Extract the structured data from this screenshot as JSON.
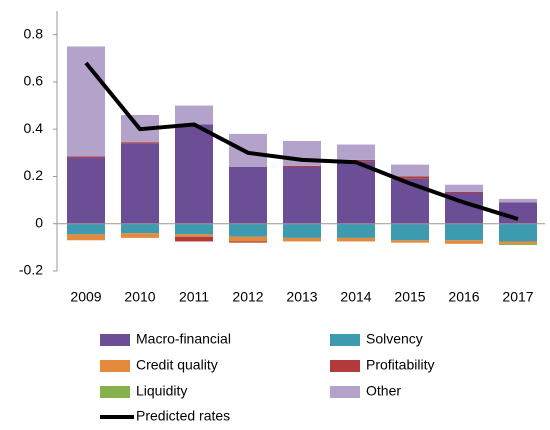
{
  "chart_data": {
    "type": "stacked-bar",
    "categories": [
      "2009",
      "2010",
      "2011",
      "2012",
      "2013",
      "2014",
      "2015",
      "2016",
      "2017"
    ],
    "series": [
      {
        "name": "Macro-financial",
        "color": "#6b4e96",
        "values": [
          0.28,
          0.34,
          0.42,
          0.24,
          0.24,
          0.265,
          0.19,
          0.13,
          0.09
        ]
      },
      {
        "name": "Solvency",
        "color": "#3d9aaf",
        "values": [
          -0.045,
          -0.04,
          -0.045,
          -0.055,
          -0.06,
          -0.06,
          -0.07,
          -0.07,
          -0.075
        ]
      },
      {
        "name": "Credit quality",
        "color": "#e38a3c",
        "values": [
          -0.025,
          -0.02,
          -0.01,
          -0.02,
          -0.015,
          -0.015,
          -0.01,
          -0.015,
          -0.01
        ]
      },
      {
        "name": "Profitability",
        "color": "#b33a3a",
        "values": [
          0.005,
          0.005,
          -0.02,
          -0.005,
          0.005,
          0.005,
          0.01,
          0.005,
          0
        ]
      },
      {
        "name": "Liquidity",
        "color": "#86b04c",
        "values": [
          0,
          0,
          0,
          0,
          0,
          0,
          0,
          0,
          -0.005
        ]
      },
      {
        "name": "Other",
        "color": "#b3a2c9",
        "values": [
          0.465,
          0.115,
          0.08,
          0.14,
          0.105,
          0.065,
          0.05,
          0.03,
          0.015
        ]
      }
    ],
    "line": {
      "name": "Predicted rates",
      "color": "#000000",
      "values": [
        0.68,
        0.4,
        0.42,
        0.3,
        0.27,
        0.26,
        0.17,
        0.09,
        0.02
      ]
    },
    "ylim": [
      -0.2,
      0.9
    ],
    "yticks": [
      -0.2,
      0,
      0.2,
      0.4,
      0.6,
      0.8
    ]
  }
}
